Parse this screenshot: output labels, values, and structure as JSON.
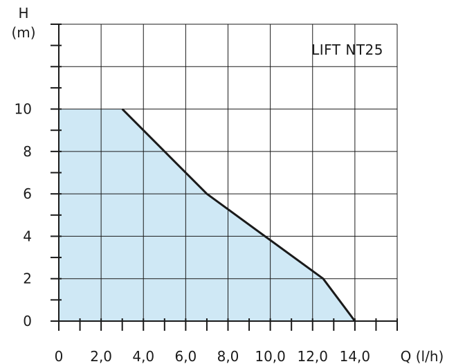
{
  "chart_data": {
    "type": "area",
    "title": "LIFT NT25",
    "xlabel": "Q (l/h)",
    "ylabel_line1": "H",
    "ylabel_line2": "(m)",
    "xlim": [
      0,
      16
    ],
    "ylim": [
      0,
      14
    ],
    "x_ticks": [
      {
        "value": 0,
        "label": "0"
      },
      {
        "value": 2,
        "label": "2,0"
      },
      {
        "value": 4,
        "label": "4,0"
      },
      {
        "value": 6,
        "label": "6,0"
      },
      {
        "value": 8,
        "label": "8,0"
      },
      {
        "value": 10,
        "label": "10,0"
      },
      {
        "value": 12,
        "label": "12,0"
      },
      {
        "value": 14,
        "label": "14,0"
      }
    ],
    "y_ticks": [
      {
        "value": 0,
        "label": "0"
      },
      {
        "value": 2,
        "label": "2"
      },
      {
        "value": 4,
        "label": "4"
      },
      {
        "value": 6,
        "label": "6"
      },
      {
        "value": 8,
        "label": "8"
      },
      {
        "value": 10,
        "label": "10"
      }
    ],
    "x_gridlines": [
      0,
      2,
      4,
      6,
      8,
      10,
      12,
      14,
      16
    ],
    "y_gridlines": [
      0,
      2,
      4,
      6,
      8,
      10,
      12,
      14
    ],
    "x_minor_ticks": [
      1,
      3,
      5,
      7,
      9,
      11,
      13,
      15
    ],
    "y_minor_ticks": [
      1,
      3,
      5,
      7,
      9,
      11,
      13
    ],
    "area_region": [
      {
        "x": 0,
        "y": 10
      },
      {
        "x": 3,
        "y": 10
      },
      {
        "x": 7,
        "y": 6
      },
      {
        "x": 12.5,
        "y": 2
      },
      {
        "x": 14,
        "y": 0
      },
      {
        "x": 0,
        "y": 0
      }
    ],
    "curve": [
      {
        "x": 3,
        "y": 10
      },
      {
        "x": 7,
        "y": 6
      },
      {
        "x": 12.5,
        "y": 2
      },
      {
        "x": 14,
        "y": 0
      }
    ],
    "fill_color": "#cfe8f5",
    "line_color": "#1a1a1a",
    "grid": true
  }
}
